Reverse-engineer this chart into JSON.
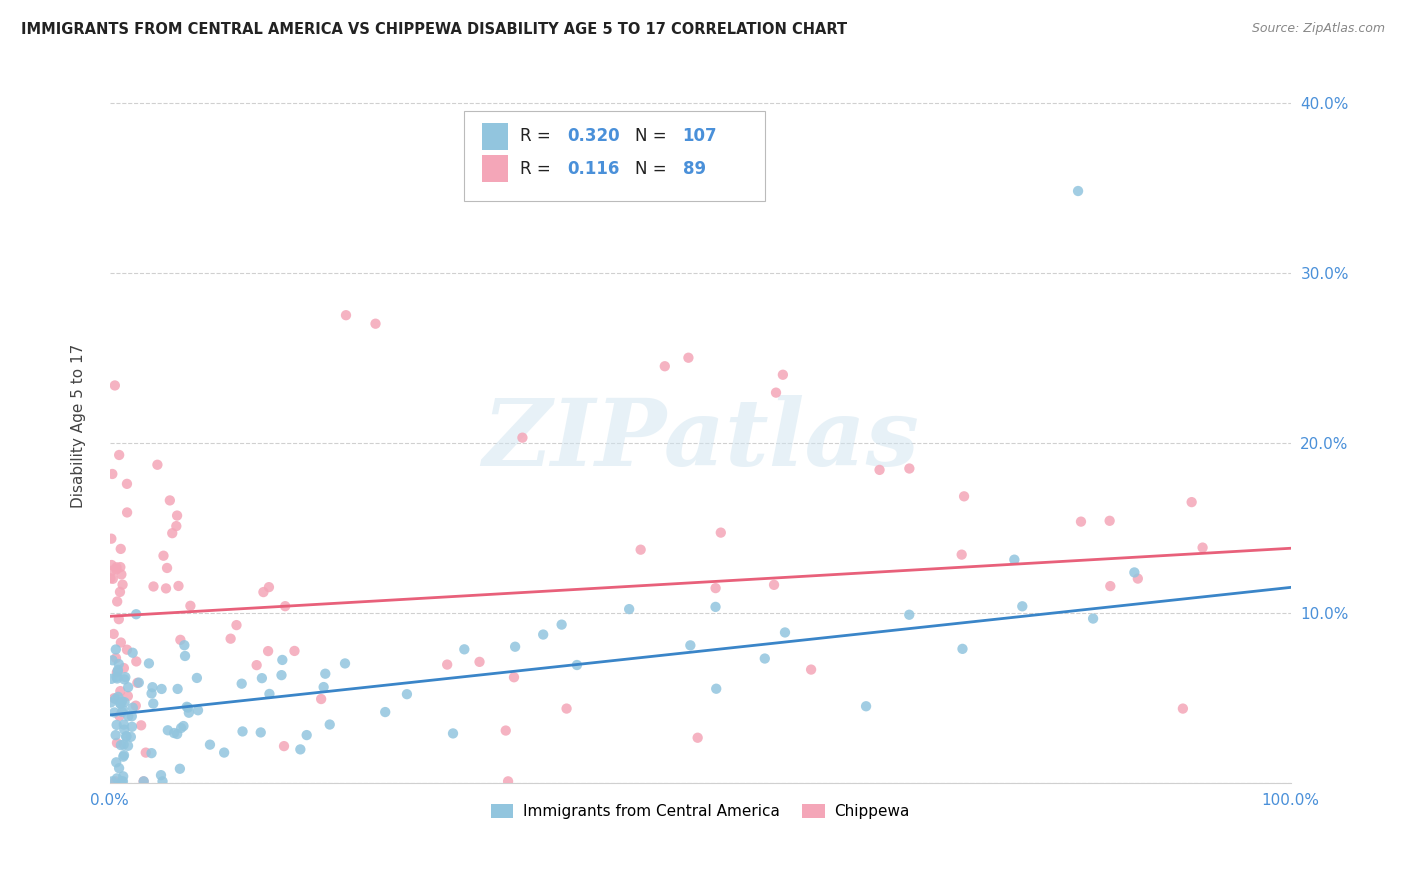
{
  "title": "IMMIGRANTS FROM CENTRAL AMERICA VS CHIPPEWA DISABILITY AGE 5 TO 17 CORRELATION CHART",
  "source": "Source: ZipAtlas.com",
  "ylabel": "Disability Age 5 to 17",
  "xlim": [
    0.0,
    1.0
  ],
  "ylim": [
    0.0,
    0.42
  ],
  "blue_color": "#92c5de",
  "pink_color": "#f4a6b8",
  "blue_line_color": "#3a85c8",
  "pink_line_color": "#e8607a",
  "axis_label_color": "#4a90d9",
  "R_blue": 0.32,
  "N_blue": 107,
  "R_pink": 0.116,
  "N_pink": 89,
  "legend_label_blue": "Immigrants from Central America",
  "legend_label_pink": "Chippewa",
  "watermark": "ZIPatlas",
  "blue_line_x0": 0.0,
  "blue_line_y0": 0.04,
  "blue_line_x1": 1.0,
  "blue_line_y1": 0.115,
  "pink_line_x0": 0.0,
  "pink_line_y0": 0.098,
  "pink_line_x1": 1.0,
  "pink_line_y1": 0.138
}
